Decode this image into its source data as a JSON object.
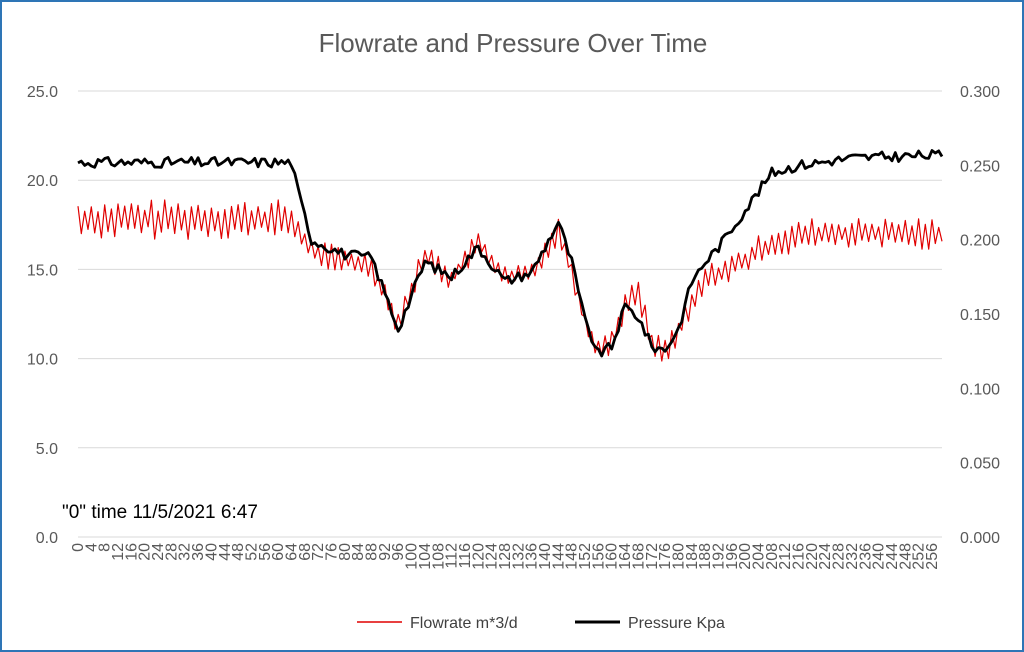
{
  "chart_data": {
    "type": "line",
    "title": "Flowrate and Pressure Over Time",
    "annotation": "\"0\" time 11/5/2021 6:47",
    "x_range": [
      0,
      259
    ],
    "x_tick_step": 4,
    "left_axis": {
      "min": 0,
      "max": 25,
      "step": 5,
      "decimals": 1
    },
    "right_axis": {
      "min": 0,
      "max": 0.3,
      "step": 0.05,
      "decimals": 3
    },
    "grid": true,
    "legend_position": "bottom",
    "series": [
      {
        "name": "Flowrate  m*3/d",
        "axis": "left",
        "color": "#E00000",
        "keypoints": [
          [
            0,
            17.8
          ],
          [
            64,
            17.8
          ],
          [
            70,
            16.0
          ],
          [
            80,
            15.5
          ],
          [
            88,
            15.2
          ],
          [
            96,
            12.0
          ],
          [
            104,
            15.8
          ],
          [
            112,
            14.5
          ],
          [
            120,
            16.5
          ],
          [
            128,
            14.5
          ],
          [
            136,
            14.8
          ],
          [
            144,
            17.2
          ],
          [
            148,
            15.0
          ],
          [
            152,
            12.0
          ],
          [
            156,
            10.5
          ],
          [
            160,
            11.0
          ],
          [
            164,
            13.0
          ],
          [
            168,
            13.8
          ],
          [
            172,
            10.8
          ],
          [
            176,
            10.5
          ],
          [
            180,
            11.5
          ],
          [
            184,
            13.0
          ],
          [
            188,
            14.5
          ],
          [
            192,
            14.8
          ],
          [
            200,
            15.5
          ],
          [
            208,
            16.5
          ],
          [
            220,
            17.0
          ],
          [
            259,
            17.0
          ]
        ],
        "amplitude_before_64": 0.75,
        "amplitude_after_64": 0.5,
        "amplitude_after_200": 0.6
      },
      {
        "name": "Pressure Kpa",
        "axis": "right",
        "color": "#000000",
        "keypoints": [
          [
            0,
            0.252
          ],
          [
            64,
            0.252
          ],
          [
            66,
            0.232
          ],
          [
            70,
            0.2
          ],
          [
            80,
            0.19
          ],
          [
            88,
            0.188
          ],
          [
            96,
            0.14
          ],
          [
            104,
            0.185
          ],
          [
            112,
            0.175
          ],
          [
            120,
            0.195
          ],
          [
            128,
            0.172
          ],
          [
            136,
            0.178
          ],
          [
            144,
            0.212
          ],
          [
            148,
            0.185
          ],
          [
            152,
            0.145
          ],
          [
            156,
            0.123
          ],
          [
            160,
            0.128
          ],
          [
            164,
            0.155
          ],
          [
            168,
            0.148
          ],
          [
            172,
            0.128
          ],
          [
            176,
            0.126
          ],
          [
            180,
            0.14
          ],
          [
            184,
            0.172
          ],
          [
            188,
            0.185
          ],
          [
            192,
            0.195
          ],
          [
            200,
            0.22
          ],
          [
            208,
            0.245
          ],
          [
            216,
            0.25
          ],
          [
            232,
            0.255
          ],
          [
            259,
            0.257
          ]
        ],
        "amplitude": 0.0035
      }
    ]
  }
}
